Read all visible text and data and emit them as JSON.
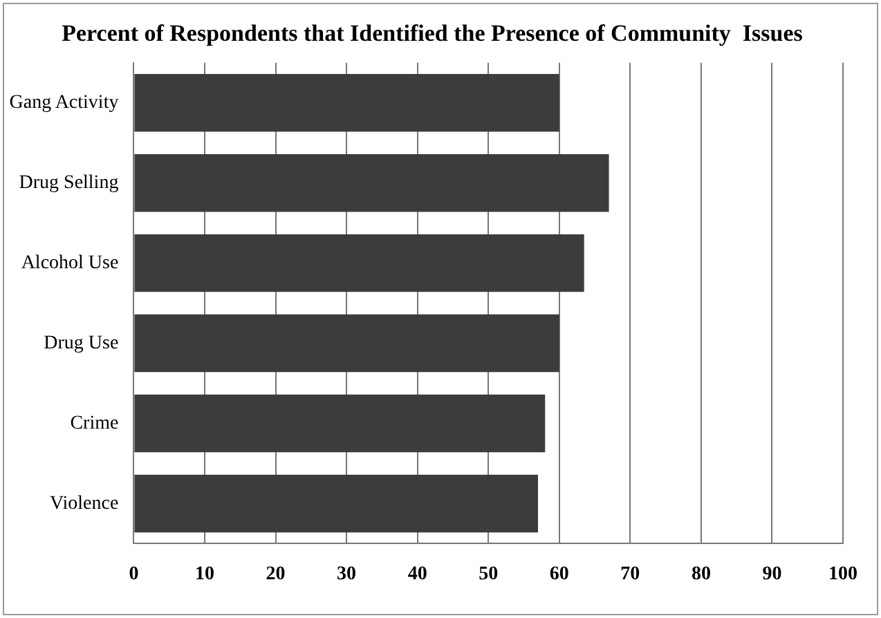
{
  "chart_data": {
    "type": "bar",
    "orientation": "horizontal",
    "title": "Percent of Respondents that Identified the Presence of Community  Issues",
    "categories": [
      "Gang Activity",
      "Drug Selling",
      "Alcohol Use",
      "Drug Use",
      "Crime",
      "Violence"
    ],
    "values": [
      60,
      67,
      63.5,
      60,
      58,
      57
    ],
    "color": "#3c3c3c",
    "xlim": [
      0,
      100
    ],
    "xticks": [
      0,
      10,
      20,
      30,
      40,
      50,
      60,
      70,
      80,
      90,
      100
    ],
    "grid": "x",
    "legend": false
  }
}
